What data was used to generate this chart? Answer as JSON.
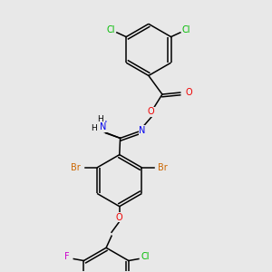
{
  "background_color": "#e8e8e8",
  "atom_colors": {
    "C": "#000000",
    "N": "#0000ee",
    "O": "#ee0000",
    "Cl": "#00bb00",
    "Br": "#cc6600",
    "F": "#cc00cc",
    "H": "#000000"
  },
  "lw": 1.1,
  "fs": 7.0
}
